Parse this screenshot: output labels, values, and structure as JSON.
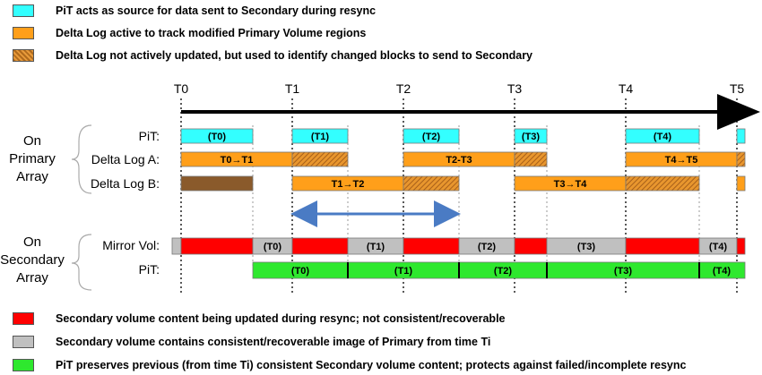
{
  "colors": {
    "cyan": "#33ffff",
    "orange": "#ff9f1a",
    "brown": "#8a5a2b",
    "red": "#ff0000",
    "gray": "#c0c0c0",
    "green": "#2ee82e",
    "arrow_blue": "#4a7bc4"
  },
  "legend_top": [
    {
      "swatch": "cyan",
      "text": "PiT acts as source for data sent to Secondary during resync"
    },
    {
      "swatch": "orange",
      "text": "Delta Log active to track modified Primary Volume regions"
    },
    {
      "swatch": "hatched-orange",
      "text": "Delta Log not actively updated, but used to identify changed blocks to send to Secondary"
    }
  ],
  "legend_bottom": [
    {
      "swatch": "red",
      "text": "Secondary volume content being updated during resync; not consistent/recoverable"
    },
    {
      "swatch": "gray",
      "text": "Secondary volume contains consistent/recoverable image of Primary from time Ti"
    },
    {
      "swatch": "green",
      "text": "PiT preserves previous (from time Ti) consistent Secondary volume content; protects against failed/incomplete resync"
    }
  ],
  "timeline": {
    "ticks": [
      "T0",
      "T1",
      "T2",
      "T3",
      "T4",
      "T5"
    ]
  },
  "groups": {
    "primary": [
      "On",
      "Primary",
      "Array"
    ],
    "secondary": [
      "On",
      "Secondary",
      "Array"
    ]
  },
  "rows": {
    "pit_primary": "PiT:",
    "delta_a": "Delta Log A:",
    "delta_b": "Delta Log B:",
    "mirror": "Mirror Vol:",
    "pit_secondary": "PiT:"
  },
  "segment_labels": {
    "pit_primary": [
      "(T0)",
      "(T1)",
      "(T2)",
      "(T3)",
      "(T4)"
    ],
    "delta_a": [
      "T0→T1",
      "T2-T3",
      "T4→T5"
    ],
    "delta_b": [
      "T1→T2",
      "T3→T4"
    ],
    "mirror": [
      "(T0)",
      "(T1)",
      "(T2)",
      "(T3)",
      "(T4)"
    ],
    "pit_secondary": [
      "(T0)",
      "(T1)",
      "(T2)",
      "(T3)",
      "(T4)"
    ]
  }
}
